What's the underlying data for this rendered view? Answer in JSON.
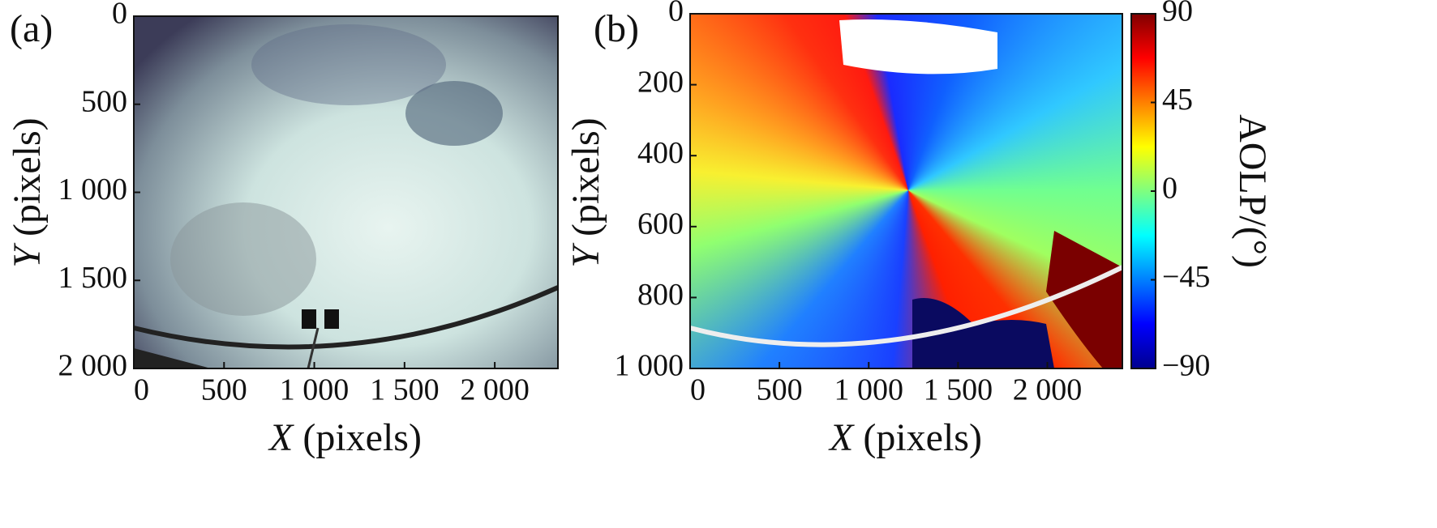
{
  "chart_data": [
    {
      "type": "image",
      "panel_label": "(a)",
      "x_label": "X (pixels)",
      "y_label": "Y (pixels)",
      "xlim": [
        0,
        2350
      ],
      "ylim": [
        2000,
        0
      ],
      "xticks": [
        0,
        500,
        {
          "value": 1000,
          "label": "1 000"
        },
        {
          "value": 1500,
          "label": "1 500"
        },
        {
          "value": 2000,
          "label": "2 000"
        }
      ],
      "yticks": [
        0,
        500,
        {
          "value": 1000,
          "label": "1 000"
        },
        {
          "value": 1500,
          "label": "1 500"
        },
        {
          "value": 2000,
          "label": "2 000"
        }
      ]
    },
    {
      "type": "image",
      "panel_label": "(b)",
      "x_label": "X (pixels)",
      "y_label": "Y (pixels)",
      "xlim": [
        0,
        2420
      ],
      "ylim": [
        1000,
        0
      ],
      "xticks": [
        0,
        500,
        {
          "value": 1000,
          "label": "1 000"
        },
        {
          "value": 1500,
          "label": "1 500"
        },
        {
          "value": 2000,
          "label": "2 000"
        }
      ],
      "yticks": [
        0,
        200,
        400,
        600,
        800,
        {
          "value": 1000,
          "label": "1 000"
        }
      ],
      "colorbar": {
        "label": "AOLP/(°)",
        "lim": [
          -90,
          90
        ],
        "ticks": [
          90,
          45,
          0,
          {
            "value": -45,
            "label": "−45"
          },
          {
            "value": -90,
            "label": "−90"
          }
        ]
      }
    }
  ]
}
